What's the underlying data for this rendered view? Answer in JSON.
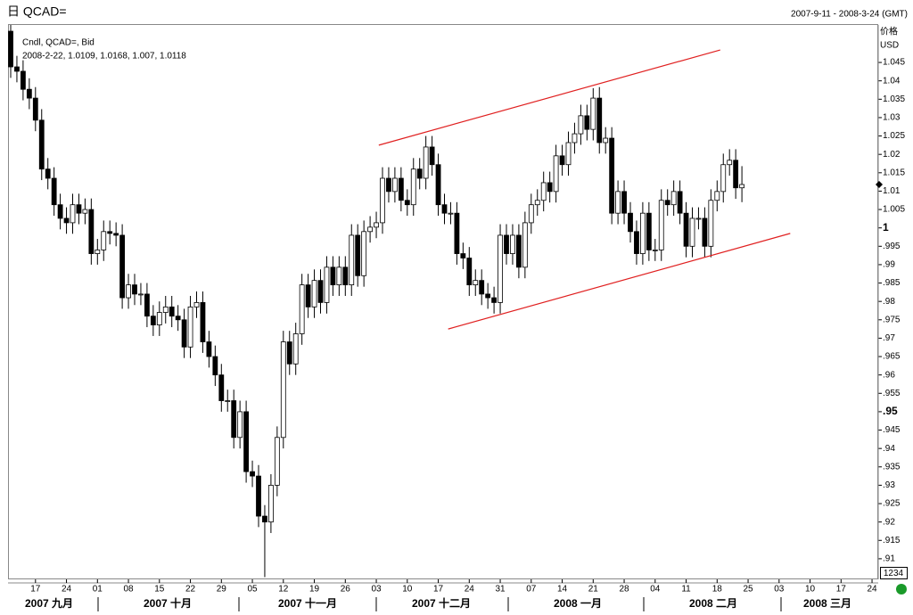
{
  "header": {
    "title": "日 QCAD=",
    "range": "2007-9-11 - 2008-3-24 (GMT)"
  },
  "chart_data": {
    "type": "candlestick",
    "legend": [
      "Cndl, QCAD=, Bid",
      "2008-2-22, 1.0109, 1.0168, 1.007, 1.0118"
    ],
    "axis_title": [
      "价格",
      "USD"
    ],
    "ylim": [
      0.9044,
      1.0552
    ],
    "yticks": [
      {
        "value": 0.91,
        "label": ".91"
      },
      {
        "value": 0.915,
        "label": ".915"
      },
      {
        "value": 0.92,
        "label": ".92"
      },
      {
        "value": 0.925,
        "label": ".925"
      },
      {
        "value": 0.93,
        "label": ".93"
      },
      {
        "value": 0.935,
        "label": ".935"
      },
      {
        "value": 0.94,
        "label": ".94"
      },
      {
        "value": 0.945,
        "label": ".945"
      },
      {
        "value": 0.95,
        "label": ".95"
      },
      {
        "value": 0.955,
        "label": ".955"
      },
      {
        "value": 0.96,
        "label": ".96"
      },
      {
        "value": 0.965,
        "label": ".965"
      },
      {
        "value": 0.97,
        "label": ".97"
      },
      {
        "value": 0.975,
        "label": ".975"
      },
      {
        "value": 0.98,
        "label": ".98"
      },
      {
        "value": 0.985,
        "label": ".985"
      },
      {
        "value": 0.99,
        "label": ".99"
      },
      {
        "value": 0.995,
        "label": ".995"
      },
      1,
      1.005,
      1.01,
      1.015,
      1.02,
      1.025,
      1.03,
      1.035,
      1.04,
      1.045
    ],
    "major_yticks": [
      0.95,
      1
    ],
    "months": [
      "2007 九月",
      "2007 十月",
      "2007 十一月",
      "2007 十二月",
      "2008 一月",
      "2008 二月",
      "2008 三月"
    ],
    "categories": [
      null,
      null,
      null,
      null,
      "17",
      null,
      null,
      null,
      null,
      "24",
      null,
      null,
      null,
      null,
      "01",
      null,
      null,
      null,
      null,
      "08",
      null,
      null,
      null,
      null,
      "15",
      null,
      null,
      null,
      null,
      "22",
      null,
      null,
      null,
      null,
      "29",
      null,
      null,
      null,
      null,
      "05",
      null,
      null,
      null,
      null,
      "12",
      null,
      null,
      null,
      null,
      "19",
      null,
      null,
      null,
      null,
      "26",
      null,
      null,
      null,
      null,
      "03",
      null,
      null,
      null,
      null,
      "10",
      null,
      null,
      null,
      null,
      "17",
      null,
      null,
      null,
      null,
      "24",
      null,
      null,
      null,
      null,
      "31",
      null,
      null,
      null,
      null,
      "07",
      null,
      null,
      null,
      null,
      "14",
      null,
      null,
      null,
      null,
      "21",
      null,
      null,
      null,
      null,
      "28",
      null,
      null,
      null,
      null,
      "04",
      null,
      null,
      null,
      null,
      "11",
      null,
      null,
      null,
      null,
      "18",
      null,
      null,
      null,
      null,
      "25",
      null,
      null,
      null,
      null,
      "03",
      null,
      null,
      null,
      null,
      "10",
      null,
      null,
      null,
      null,
      "17",
      null,
      null,
      null,
      null,
      "24",
      null,
      null,
      null,
      null
    ],
    "open": [
      1.0535,
      1.0438,
      1.0426,
      1.0377,
      1.0353,
      1.0293,
      1.016,
      1.0135,
      1.0063,
      1.0026,
      1.0014,
      1.0063,
      1.004,
      1.005,
      0.993,
      0.994,
      0.999,
      0.9985,
      0.998,
      0.981,
      0.9845,
      0.982,
      0.982,
      0.976,
      0.9736,
      0.977,
      0.9785,
      0.976,
      0.975,
      0.9676,
      0.9785,
      0.9797,
      0.969,
      0.965,
      0.96,
      0.953,
      0.953,
      0.943,
      0.95,
      0.9337,
      0.9325,
      0.9216,
      0.92,
      0.93,
      0.943,
      0.969,
      0.963,
      0.9712,
      0.9845,
      0.9785,
      0.9857,
      0.9797,
      0.9893,
      0.9845,
      0.9893,
      0.9845,
      0.998,
      0.987,
      0.999,
      1.0002,
      1.0014,
      1.0135,
      1.0099,
      1.0135,
      1.0075,
      1.0063,
      1.016,
      1.0135,
      1.022,
      1.0172,
      1.0063,
      1.004,
      1.004,
      0.993,
      0.9918,
      0.9845,
      0.9857,
      0.982,
      0.981,
      0.9797,
      0.998,
      0.993,
      0.998,
      0.9893,
      1.0014,
      1.0063,
      1.0075,
      1.0123,
      1.0099,
      1.0196,
      1.0172,
      1.0232,
      1.0256,
      1.0305,
      1.0268,
      1.0353,
      1.0232,
      1.0244,
      1.004,
      1.0099,
      1.004,
      0.999,
      0.993,
      1.004,
      0.994,
      0.994,
      1.0075,
      1.0063,
      1.0099,
      1.004,
      0.995,
      1.0026,
      1.0026,
      0.995,
      1.0075,
      1.0099,
      1.0172,
      1.0184,
      1.0109,
      null,
      null,
      null,
      null,
      null,
      null,
      null,
      null,
      null,
      null,
      null,
      null,
      null,
      null,
      null,
      null,
      null,
      null,
      null,
      null,
      null,
      null,
      null,
      null,
      null
    ],
    "high": [
      1.0552,
      1.0468,
      1.0456,
      1.0407,
      1.0383,
      1.0323,
      1.019,
      1.0165,
      1.0093,
      1.0056,
      1.0093,
      1.0093,
      1.008,
      1.008,
      0.997,
      1.002,
      1.002,
      1.0015,
      1.001,
      0.9875,
      0.9875,
      0.985,
      0.985,
      0.979,
      0.98,
      0.9815,
      0.9815,
      0.979,
      0.978,
      0.9815,
      0.9827,
      0.9827,
      0.972,
      0.968,
      0.963,
      0.956,
      0.956,
      0.953,
      0.953,
      0.9367,
      0.9355,
      0.9246,
      0.933,
      0.946,
      0.972,
      0.972,
      0.9742,
      0.9875,
      0.9875,
      0.9887,
      0.9887,
      0.9923,
      0.9923,
      0.9923,
      0.9923,
      1.001,
      1.001,
      1.002,
      1.0032,
      1.0044,
      1.0165,
      1.0165,
      1.0165,
      1.0165,
      1.0105,
      1.019,
      1.019,
      1.025,
      1.025,
      1.0202,
      1.0093,
      1.007,
      1.007,
      0.996,
      0.9948,
      0.9887,
      0.9887,
      0.985,
      0.984,
      1.001,
      1.001,
      1.001,
      1.001,
      1.0044,
      1.0093,
      1.0105,
      1.0153,
      1.0153,
      1.0226,
      1.0226,
      1.0262,
      1.0286,
      1.0335,
      1.0335,
      1.038,
      1.0383,
      1.0274,
      1.0274,
      1.0129,
      1.0129,
      1.007,
      1.002,
      1.007,
      1.007,
      0.997,
      1.0105,
      1.0105,
      1.0129,
      1.0129,
      1.007,
      1.0056,
      1.0056,
      1.0056,
      1.0105,
      1.0129,
      1.0202,
      1.0214,
      1.0214,
      1.0168,
      null,
      null,
      null,
      null,
      null,
      null,
      null,
      null,
      null,
      null,
      null,
      null,
      null,
      null,
      null,
      null,
      null,
      null,
      null,
      null,
      null,
      null,
      null,
      null,
      null
    ],
    "low": [
      1.0408,
      1.0396,
      1.0347,
      1.0323,
      1.0263,
      1.013,
      1.0105,
      1.0033,
      0.9996,
      0.9984,
      0.9984,
      1.001,
      1.001,
      0.99,
      0.99,
      0.991,
      0.9955,
      0.995,
      0.978,
      0.978,
      0.979,
      0.979,
      0.973,
      0.9706,
      0.9706,
      0.974,
      0.973,
      0.972,
      0.9646,
      0.9646,
      0.9755,
      0.966,
      0.962,
      0.957,
      0.95,
      0.95,
      0.94,
      0.94,
      0.9307,
      0.9295,
      0.9186,
      0.905,
      0.917,
      0.927,
      0.94,
      0.96,
      0.96,
      0.9682,
      0.9755,
      0.9755,
      0.9767,
      0.9767,
      0.9815,
      0.9815,
      0.9815,
      0.9815,
      0.984,
      0.984,
      0.996,
      0.9972,
      0.9984,
      1.0069,
      1.0069,
      1.0045,
      1.0033,
      1.0033,
      1.0105,
      1.0105,
      1.0142,
      1.0033,
      1.001,
      1.001,
      0.99,
      0.9888,
      0.9815,
      0.9815,
      0.979,
      0.978,
      0.9767,
      0.9767,
      0.99,
      0.99,
      0.9863,
      0.9863,
      0.9984,
      1.0033,
      1.0045,
      1.0069,
      1.0069,
      1.0142,
      1.0142,
      1.0202,
      1.0226,
      1.0238,
      1.0238,
      1.0202,
      1.0202,
      1.001,
      1.001,
      1.001,
      0.996,
      0.99,
      0.99,
      0.991,
      0.991,
      0.991,
      1.0033,
      1.0033,
      1.001,
      0.992,
      0.992,
      0.9996,
      0.992,
      0.992,
      1.0045,
      1.0069,
      1.0142,
      1.0079,
      1.007,
      null,
      null,
      null,
      null,
      null,
      null,
      null,
      null,
      null,
      null,
      null,
      null,
      null,
      null,
      null,
      null,
      null,
      null,
      null,
      null,
      null,
      null,
      null,
      null,
      null
    ],
    "close": [
      1.0438,
      1.0426,
      1.0377,
      1.0353,
      1.0293,
      1.016,
      1.0135,
      1.0063,
      1.0026,
      1.0014,
      1.0063,
      1.004,
      1.005,
      0.993,
      0.994,
      0.999,
      0.9985,
      0.998,
      0.981,
      0.9845,
      0.982,
      0.982,
      0.976,
      0.9736,
      0.977,
      0.9785,
      0.976,
      0.975,
      0.9676,
      0.9785,
      0.9797,
      0.969,
      0.965,
      0.96,
      0.953,
      0.953,
      0.943,
      0.95,
      0.9337,
      0.9325,
      0.9216,
      0.92,
      0.93,
      0.943,
      0.969,
      0.963,
      0.9712,
      0.9845,
      0.9785,
      0.9857,
      0.9797,
      0.9893,
      0.9845,
      0.9893,
      0.9845,
      0.998,
      0.987,
      0.999,
      1.0002,
      1.0014,
      1.0135,
      1.0099,
      1.0135,
      1.0075,
      1.0063,
      1.016,
      1.0135,
      1.022,
      1.0172,
      1.0063,
      1.004,
      1.004,
      0.993,
      0.9918,
      0.9845,
      0.9857,
      0.982,
      0.981,
      0.9797,
      0.998,
      0.993,
      0.998,
      0.9893,
      1.0014,
      1.0063,
      1.0075,
      1.0123,
      1.0099,
      1.0196,
      1.0172,
      1.0232,
      1.0256,
      1.0305,
      1.0268,
      1.0353,
      1.0232,
      1.0244,
      1.004,
      1.0099,
      1.004,
      0.999,
      0.993,
      1.004,
      0.994,
      0.994,
      1.0075,
      1.0063,
      1.0099,
      1.004,
      0.995,
      1.0026,
      1.0026,
      0.995,
      1.0075,
      1.0099,
      1.0172,
      1.0184,
      1.0109,
      1.0118,
      null,
      null,
      null,
      null,
      null,
      null,
      null,
      null,
      null,
      null,
      null,
      null,
      null,
      null,
      null,
      null,
      null,
      null,
      null,
      null,
      null,
      null,
      null,
      null,
      null
    ],
    "up_color": "#ffffff",
    "down_color": "#000000",
    "trendlines": [
      {
        "color": "#e02020",
        "x": [
          59.4,
          114.5
        ],
        "y": [
          1.0225,
          1.0484
        ]
      },
      {
        "color": "#e02020",
        "x": [
          70.6,
          125.8
        ],
        "y": [
          0.9725,
          0.9985
        ]
      }
    ],
    "box_label": "1234"
  }
}
